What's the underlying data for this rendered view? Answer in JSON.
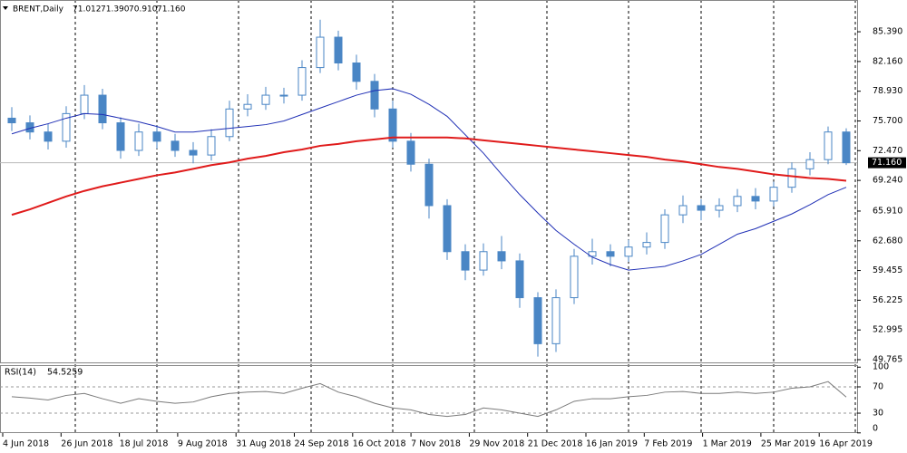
{
  "chart_data": [
    {
      "type": "candlestick",
      "title": "BRENT,Daily",
      "quote": [
        {
          "value": 71.012,
          "label": "71.012"
        },
        {
          "value": 71.39,
          "label": "71.390"
        },
        {
          "value": 70.91,
          "label": "70.910"
        },
        {
          "value": 71.16,
          "label": "71.160"
        }
      ],
      "x_labels": [
        "4 Jun 2018",
        "26 Jun 2018",
        "18 Jul 2018",
        "9 Aug 2018",
        "31 Aug 2018",
        "24 Sep 2018",
        "16 Oct 2018",
        "7 Nov 2018",
        "29 Nov 2018",
        "21 Dec 2018",
        "16 Jan 2019",
        "7 Feb 2019",
        "1 Mar 2019",
        "25 Mar 2019",
        "16 Apr 2019"
      ],
      "open": [
        76,
        75.5,
        74.5,
        73.5,
        76.5,
        78.5,
        75.5,
        72.5,
        74.5,
        73.5,
        72.5,
        72,
        74,
        77,
        77.5,
        78.5,
        78.5,
        81.5,
        84.8,
        82,
        80,
        77,
        73.5,
        71,
        66.5,
        61.5,
        59.5,
        61.5,
        60.5,
        56.5,
        51.5,
        56.5,
        61,
        61.5,
        61,
        62,
        62.5,
        65.5,
        66.5,
        66,
        66.5,
        67.5,
        67,
        68.5,
        70.5,
        71.5,
        74.5
      ],
      "high": [
        77.2,
        76.3,
        75.4,
        77.3,
        79.6,
        79.2,
        76.1,
        75.4,
        75.2,
        74.3,
        73.4,
        74.8,
        77.9,
        78.6,
        79.4,
        79.3,
        82.3,
        86.7,
        85.5,
        82.9,
        80.8,
        77.9,
        74.4,
        71.6,
        67.2,
        62.3,
        62.4,
        63.2,
        61.3,
        57.1,
        57.4,
        61.8,
        62.9,
        62.3,
        62.8,
        63.6,
        66.1,
        67.6,
        67.2,
        67.3,
        68.3,
        68.4,
        69.1,
        71.2,
        72.3,
        75.1,
        74.9
      ],
      "low": [
        74.6,
        73.7,
        72.6,
        72.8,
        75.9,
        74.8,
        71.6,
        71.9,
        72.7,
        71.8,
        71.1,
        71.4,
        73.5,
        76.2,
        76.9,
        77.6,
        77.9,
        80.9,
        81.2,
        79.1,
        76.1,
        72.8,
        70.2,
        65.1,
        60.6,
        58.4,
        58.9,
        59.6,
        55.4,
        50.1,
        50.6,
        55.8,
        60.1,
        59.9,
        60.4,
        61.2,
        61.8,
        64.6,
        64.9,
        65.2,
        65.8,
        66.1,
        66.4,
        67.9,
        69.8,
        71,
        70.91
      ],
      "close": [
        75.5,
        74.5,
        73.5,
        76.5,
        78.5,
        75.5,
        72.5,
        74.5,
        73.5,
        72.5,
        72,
        74,
        77,
        77.5,
        78.5,
        78.5,
        81.5,
        84.8,
        82,
        80,
        77,
        73.5,
        71,
        66.5,
        61.5,
        59.5,
        61.5,
        60.5,
        56.5,
        51.5,
        56.5,
        61,
        61.5,
        61,
        62,
        62.5,
        65.5,
        66.5,
        66,
        66.5,
        67.5,
        67,
        68.5,
        70.5,
        71.5,
        74.5,
        71.16
      ],
      "color": "#4a86c5",
      "ma_lines": [
        {
          "color": "#1f2fb5",
          "values": [
            74.3,
            74.9,
            75.4,
            76.0,
            76.5,
            76.4,
            76.0,
            75.6,
            75.1,
            74.5,
            74.5,
            74.7,
            74.9,
            75.1,
            75.3,
            75.7,
            76.4,
            77.1,
            77.8,
            78.5,
            79.0,
            79.2,
            78.6,
            77.5,
            76.2,
            74.2,
            72.2,
            69.9,
            67.7,
            65.7,
            63.8,
            62.3,
            60.9,
            60.1,
            59.5,
            59.7,
            59.9,
            60.5,
            61.2,
            62.3,
            63.4,
            64.0,
            64.8,
            65.6,
            66.6,
            67.7,
            68.5
          ]
        },
        {
          "color": "#e01b1b",
          "values": [
            65.5,
            66.1,
            66.8,
            67.5,
            68.1,
            68.6,
            69.0,
            69.4,
            69.8,
            70.1,
            70.5,
            70.9,
            71.2,
            71.6,
            71.9,
            72.3,
            72.6,
            73.0,
            73.2,
            73.5,
            73.7,
            73.9,
            73.9,
            73.9,
            73.9,
            73.8,
            73.6,
            73.4,
            73.2,
            73.0,
            72.8,
            72.6,
            72.4,
            72.2,
            72.0,
            71.8,
            71.5,
            71.3,
            71.0,
            70.7,
            70.5,
            70.2,
            69.9,
            69.7,
            69.5,
            69.4,
            69.2
          ]
        }
      ],
      "last_price": {
        "value": 71.16,
        "label": "71.160"
      },
      "ylim": [
        49.47,
        88.84
      ],
      "yticks": [
        {
          "value": 85.39,
          "label": "85.390"
        },
        {
          "value": 82.16,
          "label": "82.160"
        },
        {
          "value": 78.93,
          "label": "78.930"
        },
        {
          "value": 75.7,
          "label": "75.700"
        },
        {
          "value": 72.47,
          "label": "72.470"
        },
        {
          "value": 69.24,
          "label": "69.240"
        },
        {
          "value": 65.91,
          "label": "65.910"
        },
        {
          "value": 62.68,
          "label": "62.680"
        },
        {
          "value": 59.455,
          "label": "59.455"
        },
        {
          "value": 56.225,
          "label": "56.225"
        },
        {
          "value": 52.995,
          "label": "52.995"
        },
        {
          "value": 49.765,
          "label": "49.765"
        }
      ]
    },
    {
      "type": "line",
      "title": "RSI(14)",
      "last_value": 54.5259,
      "color": "#7a7a7a",
      "values": [
        55,
        53,
        50,
        57,
        60,
        52,
        45,
        52,
        48,
        45,
        47,
        55,
        60,
        62,
        63,
        60,
        68,
        75,
        62,
        55,
        45,
        38,
        35,
        28,
        25,
        28,
        38,
        35,
        30,
        25,
        35,
        48,
        52,
        52,
        55,
        57,
        62,
        63,
        60,
        60,
        62,
        60,
        62,
        68,
        70,
        78,
        54.5259
      ],
      "ylim": [
        -0.3,
        103.1
      ],
      "yticks": [
        100,
        70,
        30,
        0
      ],
      "levels": [
        70,
        30
      ]
    }
  ]
}
